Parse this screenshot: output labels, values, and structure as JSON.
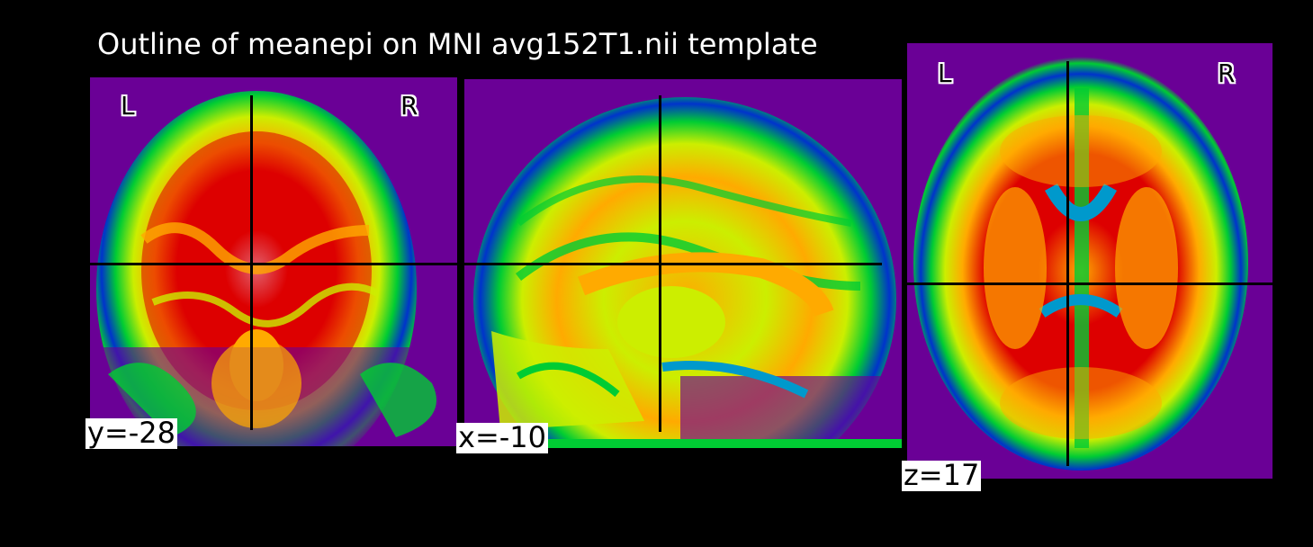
{
  "title": "Outline of meanepi on MNI avg152T1.nii template",
  "orientation": {
    "left": "L",
    "right": "R"
  },
  "coronal": {
    "coord_label": "y=-28"
  },
  "sagittal": {
    "coord_label": "x=-10"
  },
  "axial": {
    "coord_label": "z=17"
  },
  "colormap": {
    "background": "#6a0096",
    "low": "#0033cc",
    "mid_low": "#00cc33",
    "mid": "#ccee00",
    "mid_high": "#ffaa00",
    "high": "#dd0000",
    "peak": "#e8d8f0"
  },
  "crosshair_color": "#000000",
  "background": "#000000"
}
